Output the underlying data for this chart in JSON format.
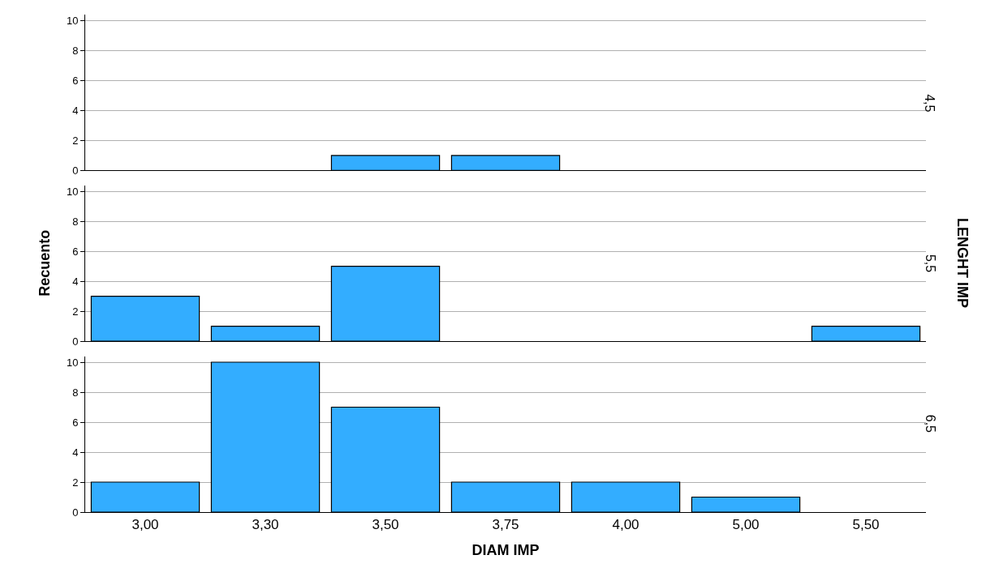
{
  "chart_data": [
    {
      "type": "bar",
      "categories": [
        "3,00",
        "3,30",
        "3,50",
        "3,75",
        "4,00",
        "5,00",
        "5,50"
      ],
      "values": [
        0,
        0,
        1,
        1,
        0,
        0,
        0
      ],
      "color": "#33adff",
      "ylim": [
        0,
        10.4
      ],
      "yticks": [
        0,
        2,
        4,
        6,
        8,
        10
      ],
      "grid": "y",
      "tick_labels": "y",
      "annotations": [
        "4,5"
      ]
    },
    {
      "type": "bar",
      "categories": [
        "3,00",
        "3,30",
        "3,50",
        "3,75",
        "4,00",
        "5,00",
        "5,50"
      ],
      "values": [
        3,
        1,
        5,
        0,
        0,
        0,
        1
      ],
      "color": "#33adff",
      "ylim": [
        0,
        10.4
      ],
      "yticks": [
        0,
        2,
        4,
        6,
        8,
        10
      ],
      "grid": "y",
      "tick_labels": "y",
      "ylabel": "Recuento",
      "y2label": "LENGHT IMP",
      "annotations": [
        "5,5"
      ]
    },
    {
      "type": "bar",
      "categories": [
        "3,00",
        "3,30",
        "3,50",
        "3,75",
        "4,00",
        "5,00",
        "5,50"
      ],
      "values": [
        2,
        10,
        7,
        2,
        2,
        1,
        0
      ],
      "color": "#33adff",
      "ylim": [
        0,
        10.4
      ],
      "yticks": [
        0,
        2,
        4,
        6,
        8,
        10
      ],
      "grid": "y",
      "xlabel": "DIAM IMP",
      "annotations": [
        "6,5"
      ]
    }
  ]
}
